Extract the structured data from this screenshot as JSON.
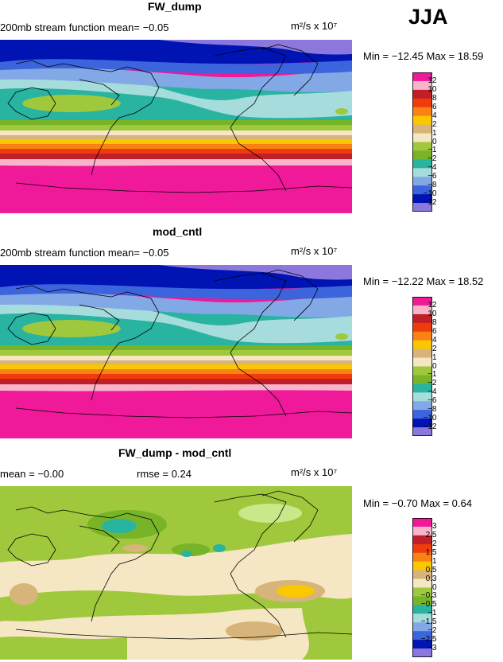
{
  "season": "JJA",
  "units_label": "m²/s x 10⁷",
  "panels": [
    {
      "title": "FW_dump",
      "left_label": "200mb stream function  mean=  −0.05",
      "stats_label": "Min = −12.45  Max =  18.59",
      "palette": "full"
    },
    {
      "title": "mod_cntl",
      "left_label": "200mb stream function  mean=  −0.05",
      "stats_label": "Min = −12.22  Max =  18.52",
      "palette": "full"
    },
    {
      "title": "FW_dump - mod_cntl",
      "left_label": "mean =  −0.00",
      "rmse_label": "rmse =  0.24",
      "stats_label": "Min =  −0.70  Max =   0.64",
      "palette": "diff"
    }
  ],
  "colorbars": {
    "full": {
      "levels": [
        "12",
        "10",
        "8",
        "6",
        "4",
        "2",
        "1",
        "0",
        "−1",
        "−2",
        "−4",
        "−6",
        "−8",
        "−10",
        "−12"
      ],
      "colors": [
        "#f0199a",
        "#f8b4c8",
        "#c01e28",
        "#f03c0a",
        "#fa8214",
        "#fac800",
        "#d6b47a",
        "#f5e6c4",
        "#a0c83c",
        "#78b428",
        "#28b4a0",
        "#a6dcdc",
        "#82a8e6",
        "#3c64dc",
        "#0014b4",
        "#8c78dc"
      ]
    },
    "diff": {
      "levels": [
        "3",
        "2.5",
        "2",
        "1.5",
        "1",
        "0.5",
        "0.3",
        "0",
        "−0.3",
        "−0.5",
        "−1",
        "−1.5",
        "−2",
        "−2.5",
        "−3"
      ],
      "colors": [
        "#f0199a",
        "#f8b4c8",
        "#c01e28",
        "#f03c0a",
        "#fa8214",
        "#fac800",
        "#d6b47a",
        "#f5e6c4",
        "#a0c83c",
        "#78b428",
        "#28b4a0",
        "#a6dcdc",
        "#82a8e6",
        "#3c64dc",
        "#0014b4",
        "#8c78dc"
      ]
    }
  },
  "chart_data": [
    {
      "type": "heatmap",
      "title": "FW_dump",
      "subtitle": "200mb stream function",
      "units": "m²/s x 10⁷",
      "mean": -0.05,
      "min": -12.45,
      "max": 18.59,
      "contour_levels": [
        -12,
        -10,
        -8,
        -6,
        -4,
        -2,
        -1,
        0,
        1,
        2,
        4,
        6,
        8,
        10,
        12
      ]
    },
    {
      "type": "heatmap",
      "title": "mod_cntl",
      "subtitle": "200mb stream function",
      "units": "m²/s x 10⁷",
      "mean": -0.05,
      "min": -12.22,
      "max": 18.52,
      "contour_levels": [
        -12,
        -10,
        -8,
        -6,
        -4,
        -2,
        -1,
        0,
        1,
        2,
        4,
        6,
        8,
        10,
        12
      ]
    },
    {
      "type": "heatmap",
      "title": "FW_dump - mod_cntl",
      "units": "m²/s x 10⁷",
      "mean": -0.0,
      "rmse": 0.24,
      "min": -0.7,
      "max": 0.64,
      "contour_levels": [
        -3,
        -2.5,
        -2,
        -1.5,
        -1,
        -0.5,
        -0.3,
        0,
        0.3,
        0.5,
        1,
        1.5,
        2,
        2.5,
        3
      ]
    }
  ]
}
